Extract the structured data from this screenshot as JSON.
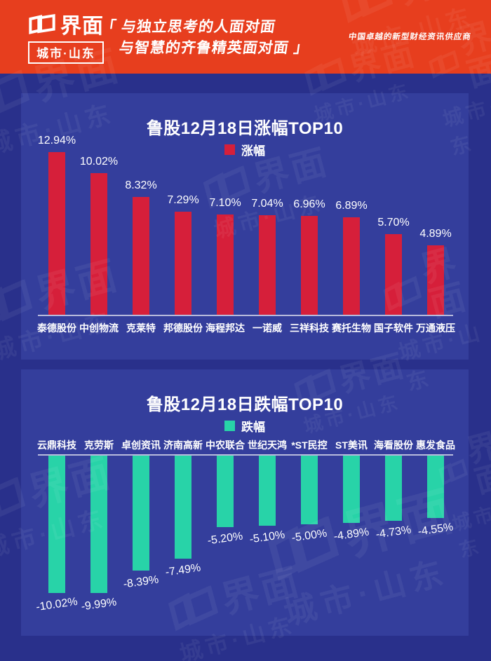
{
  "header": {
    "brand": "界面",
    "brand_sub": "城市·山东",
    "slogan_line1": "「 与独立思考的人面对面",
    "slogan_line2": "与智慧的齐鲁精英面对面 」",
    "tagline": "中国卓越的新型财经资讯供应商"
  },
  "colors": {
    "header_bg": "#e73e1e",
    "page_bg": "#29308b",
    "panel_bg": "#343e9c",
    "gain_red": "#d61f3a",
    "loss_teal": "#28d3a8",
    "text": "#ffffff"
  },
  "watermark": {
    "brand": "界面",
    "region": "城市·山东"
  },
  "chart_data": [
    {
      "type": "bar",
      "title": "鲁股12月18日涨幅TOP10",
      "legend": "涨幅",
      "bar_color": "#d61f3a",
      "direction": "up",
      "categories": [
        "泰德股份",
        "中创物流",
        "克莱特",
        "邦德股份",
        "海程邦达",
        "一诺威",
        "三祥科技",
        "赛托生物",
        "国子软件",
        "万通液压"
      ],
      "values": [
        12.94,
        10.02,
        8.32,
        7.29,
        7.1,
        7.04,
        6.96,
        6.89,
        5.7,
        4.89
      ],
      "labels": [
        "12.94%",
        "10.02%",
        "8.32%",
        "7.29%",
        "7.10%",
        "7.04%",
        "6.96%",
        "6.89%",
        "5.70%",
        "4.89%"
      ],
      "xlabel": "",
      "ylabel": "",
      "ylim": [
        0,
        13
      ],
      "grid": false,
      "legend_position": "top-center"
    },
    {
      "type": "bar",
      "title": "鲁股12月18日跌幅TOP10",
      "legend": "跌幅",
      "bar_color": "#28d3a8",
      "direction": "down",
      "categories": [
        "云鼎科技",
        "克劳斯",
        "卓创资讯",
        "济南高新",
        "中农联合",
        "世纪天鸿",
        "*ST民控",
        "ST美讯",
        "海看股份",
        "惠发食品"
      ],
      "values": [
        -10.02,
        -9.99,
        -8.39,
        -7.49,
        -5.2,
        -5.1,
        -5.0,
        -4.89,
        -4.73,
        -4.55
      ],
      "labels": [
        "-10.02%",
        "-9.99%",
        "-8.39%",
        "-7.49%",
        "-5.20%",
        "-5.10%",
        "-5.00%",
        "-4.89%",
        "-4.73%",
        "-4.55%"
      ],
      "xlabel": "",
      "ylabel": "",
      "ylim": [
        -11,
        0
      ],
      "grid": false,
      "legend_position": "top-center"
    }
  ]
}
